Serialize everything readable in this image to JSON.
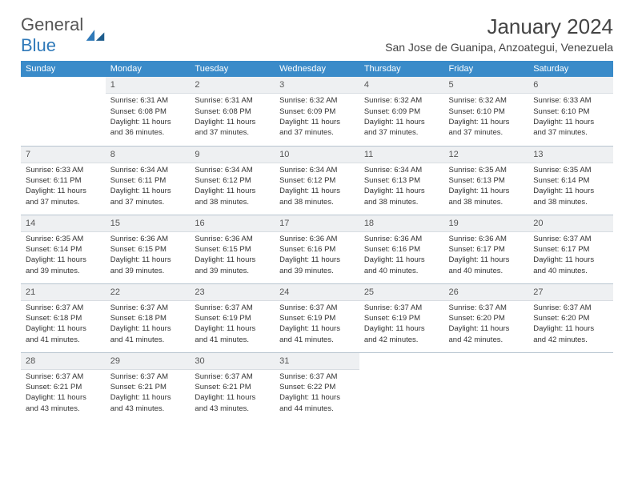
{
  "brand": {
    "general": "General",
    "blue": "Blue"
  },
  "title": "January 2024",
  "location": "San Jose de Guanipa, Anzoategui, Venezuela",
  "weekdays": [
    "Sunday",
    "Monday",
    "Tuesday",
    "Wednesday",
    "Thursday",
    "Friday",
    "Saturday"
  ],
  "colors": {
    "header_bg": "#3a8bc9",
    "header_fg": "#ffffff",
    "daynum_bg": "#eef0f2",
    "rule": "#b8c5d0"
  },
  "weeks": [
    [
      null,
      {
        "n": "1",
        "sr": "Sunrise: 6:31 AM",
        "ss": "Sunset: 6:08 PM",
        "d1": "Daylight: 11 hours",
        "d2": "and 36 minutes."
      },
      {
        "n": "2",
        "sr": "Sunrise: 6:31 AM",
        "ss": "Sunset: 6:08 PM",
        "d1": "Daylight: 11 hours",
        "d2": "and 37 minutes."
      },
      {
        "n": "3",
        "sr": "Sunrise: 6:32 AM",
        "ss": "Sunset: 6:09 PM",
        "d1": "Daylight: 11 hours",
        "d2": "and 37 minutes."
      },
      {
        "n": "4",
        "sr": "Sunrise: 6:32 AM",
        "ss": "Sunset: 6:09 PM",
        "d1": "Daylight: 11 hours",
        "d2": "and 37 minutes."
      },
      {
        "n": "5",
        "sr": "Sunrise: 6:32 AM",
        "ss": "Sunset: 6:10 PM",
        "d1": "Daylight: 11 hours",
        "d2": "and 37 minutes."
      },
      {
        "n": "6",
        "sr": "Sunrise: 6:33 AM",
        "ss": "Sunset: 6:10 PM",
        "d1": "Daylight: 11 hours",
        "d2": "and 37 minutes."
      }
    ],
    [
      {
        "n": "7",
        "sr": "Sunrise: 6:33 AM",
        "ss": "Sunset: 6:11 PM",
        "d1": "Daylight: 11 hours",
        "d2": "and 37 minutes."
      },
      {
        "n": "8",
        "sr": "Sunrise: 6:34 AM",
        "ss": "Sunset: 6:11 PM",
        "d1": "Daylight: 11 hours",
        "d2": "and 37 minutes."
      },
      {
        "n": "9",
        "sr": "Sunrise: 6:34 AM",
        "ss": "Sunset: 6:12 PM",
        "d1": "Daylight: 11 hours",
        "d2": "and 38 minutes."
      },
      {
        "n": "10",
        "sr": "Sunrise: 6:34 AM",
        "ss": "Sunset: 6:12 PM",
        "d1": "Daylight: 11 hours",
        "d2": "and 38 minutes."
      },
      {
        "n": "11",
        "sr": "Sunrise: 6:34 AM",
        "ss": "Sunset: 6:13 PM",
        "d1": "Daylight: 11 hours",
        "d2": "and 38 minutes."
      },
      {
        "n": "12",
        "sr": "Sunrise: 6:35 AM",
        "ss": "Sunset: 6:13 PM",
        "d1": "Daylight: 11 hours",
        "d2": "and 38 minutes."
      },
      {
        "n": "13",
        "sr": "Sunrise: 6:35 AM",
        "ss": "Sunset: 6:14 PM",
        "d1": "Daylight: 11 hours",
        "d2": "and 38 minutes."
      }
    ],
    [
      {
        "n": "14",
        "sr": "Sunrise: 6:35 AM",
        "ss": "Sunset: 6:14 PM",
        "d1": "Daylight: 11 hours",
        "d2": "and 39 minutes."
      },
      {
        "n": "15",
        "sr": "Sunrise: 6:36 AM",
        "ss": "Sunset: 6:15 PM",
        "d1": "Daylight: 11 hours",
        "d2": "and 39 minutes."
      },
      {
        "n": "16",
        "sr": "Sunrise: 6:36 AM",
        "ss": "Sunset: 6:15 PM",
        "d1": "Daylight: 11 hours",
        "d2": "and 39 minutes."
      },
      {
        "n": "17",
        "sr": "Sunrise: 6:36 AM",
        "ss": "Sunset: 6:16 PM",
        "d1": "Daylight: 11 hours",
        "d2": "and 39 minutes."
      },
      {
        "n": "18",
        "sr": "Sunrise: 6:36 AM",
        "ss": "Sunset: 6:16 PM",
        "d1": "Daylight: 11 hours",
        "d2": "and 40 minutes."
      },
      {
        "n": "19",
        "sr": "Sunrise: 6:36 AM",
        "ss": "Sunset: 6:17 PM",
        "d1": "Daylight: 11 hours",
        "d2": "and 40 minutes."
      },
      {
        "n": "20",
        "sr": "Sunrise: 6:37 AM",
        "ss": "Sunset: 6:17 PM",
        "d1": "Daylight: 11 hours",
        "d2": "and 40 minutes."
      }
    ],
    [
      {
        "n": "21",
        "sr": "Sunrise: 6:37 AM",
        "ss": "Sunset: 6:18 PM",
        "d1": "Daylight: 11 hours",
        "d2": "and 41 minutes."
      },
      {
        "n": "22",
        "sr": "Sunrise: 6:37 AM",
        "ss": "Sunset: 6:18 PM",
        "d1": "Daylight: 11 hours",
        "d2": "and 41 minutes."
      },
      {
        "n": "23",
        "sr": "Sunrise: 6:37 AM",
        "ss": "Sunset: 6:19 PM",
        "d1": "Daylight: 11 hours",
        "d2": "and 41 minutes."
      },
      {
        "n": "24",
        "sr": "Sunrise: 6:37 AM",
        "ss": "Sunset: 6:19 PM",
        "d1": "Daylight: 11 hours",
        "d2": "and 41 minutes."
      },
      {
        "n": "25",
        "sr": "Sunrise: 6:37 AM",
        "ss": "Sunset: 6:19 PM",
        "d1": "Daylight: 11 hours",
        "d2": "and 42 minutes."
      },
      {
        "n": "26",
        "sr": "Sunrise: 6:37 AM",
        "ss": "Sunset: 6:20 PM",
        "d1": "Daylight: 11 hours",
        "d2": "and 42 minutes."
      },
      {
        "n": "27",
        "sr": "Sunrise: 6:37 AM",
        "ss": "Sunset: 6:20 PM",
        "d1": "Daylight: 11 hours",
        "d2": "and 42 minutes."
      }
    ],
    [
      {
        "n": "28",
        "sr": "Sunrise: 6:37 AM",
        "ss": "Sunset: 6:21 PM",
        "d1": "Daylight: 11 hours",
        "d2": "and 43 minutes."
      },
      {
        "n": "29",
        "sr": "Sunrise: 6:37 AM",
        "ss": "Sunset: 6:21 PM",
        "d1": "Daylight: 11 hours",
        "d2": "and 43 minutes."
      },
      {
        "n": "30",
        "sr": "Sunrise: 6:37 AM",
        "ss": "Sunset: 6:21 PM",
        "d1": "Daylight: 11 hours",
        "d2": "and 43 minutes."
      },
      {
        "n": "31",
        "sr": "Sunrise: 6:37 AM",
        "ss": "Sunset: 6:22 PM",
        "d1": "Daylight: 11 hours",
        "d2": "and 44 minutes."
      },
      null,
      null,
      null
    ]
  ]
}
